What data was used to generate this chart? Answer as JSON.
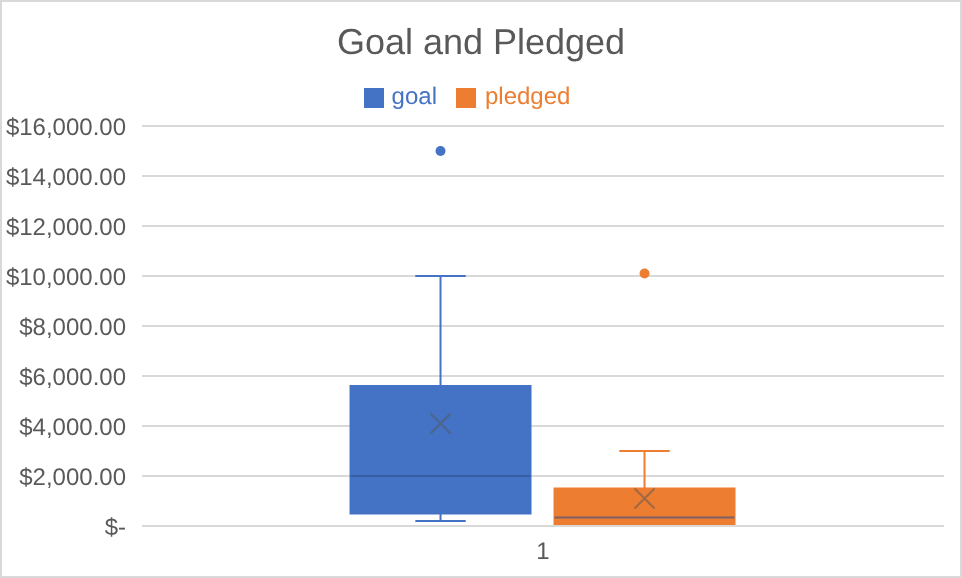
{
  "chart_data": {
    "type": "box",
    "title": "Goal and Pledged",
    "categories": [
      "1"
    ],
    "series": [
      {
        "name": "goal",
        "color": "#4472c4",
        "boxes": [
          {
            "low": 200,
            "q1": 500,
            "median": 2000,
            "q3": 5600,
            "high": 10000,
            "mean": 4100,
            "outliers": [
              15000
            ]
          }
        ]
      },
      {
        "name": "pledged",
        "color": "#ed7d31",
        "boxes": [
          {
            "low": 0,
            "q1": 0,
            "median": 340,
            "q3": 1500,
            "high": 3000,
            "mean": 1100,
            "outliers": [
              10100
            ]
          }
        ]
      }
    ],
    "ylim": [
      0,
      16000
    ],
    "yticks": [
      {
        "value": 0,
        "label": "$-"
      },
      {
        "value": 2000,
        "label": "$2,000.00"
      },
      {
        "value": 4000,
        "label": "$4,000.00"
      },
      {
        "value": 6000,
        "label": "$6,000.00"
      },
      {
        "value": 8000,
        "label": "$8,000.00"
      },
      {
        "value": 10000,
        "label": "$10,000.00"
      },
      {
        "value": 12000,
        "label": "$12,000.00"
      },
      {
        "value": 14000,
        "label": "$14,000.00"
      },
      {
        "value": 16000,
        "label": "$16,000.00"
      }
    ],
    "grid": "y",
    "legend": "top"
  }
}
